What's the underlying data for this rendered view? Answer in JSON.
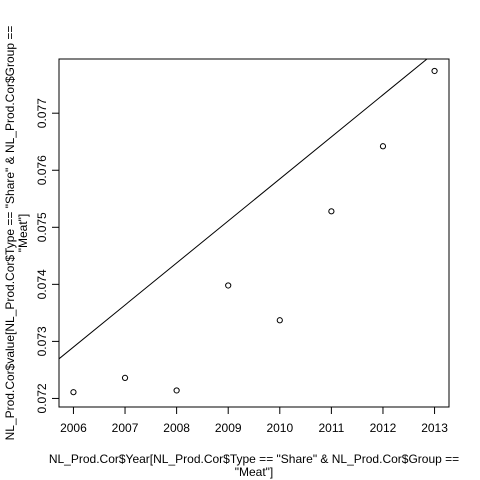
{
  "chart_data": {
    "type": "scatter",
    "title": "",
    "xlabel_lines": [
      "NL_Prod.Cor$Year[NL_Prod.Cor$Type == \"Share\" & NL_Prod.Cor$Group ==",
      "\"Meat\"]"
    ],
    "ylabel_lines": [
      "NL_Prod.Cor$value[NL_Prod.Cor$Type == \"Share\" & NL_Prod.Cor$Group ==",
      "\"Meat\"]"
    ],
    "xlim": [
      2005.72,
      2013.28
    ],
    "ylim": [
      0.07185,
      0.07795
    ],
    "x_ticks": [
      2006,
      2007,
      2008,
      2009,
      2010,
      2011,
      2012,
      2013
    ],
    "x_tick_labels": [
      "2006",
      "2007",
      "2008",
      "2009",
      "2010",
      "2011",
      "2012",
      "2013"
    ],
    "y_ticks": [
      0.072,
      0.073,
      0.074,
      0.075,
      0.076,
      0.077
    ],
    "y_tick_labels": [
      "0.072",
      "0.073",
      "0.074",
      "0.075",
      "0.076",
      "0.077"
    ],
    "x": [
      2006,
      2007,
      2008,
      2009,
      2010,
      2011,
      2012,
      2013
    ],
    "y": [
      0.07211,
      0.07236,
      0.07214,
      0.07398,
      0.07337,
      0.07528,
      0.07642,
      0.07774
    ],
    "fit_line": {
      "intercept": -1.40512,
      "slope": 0.0007368
    },
    "grid": false,
    "legend": "none"
  }
}
